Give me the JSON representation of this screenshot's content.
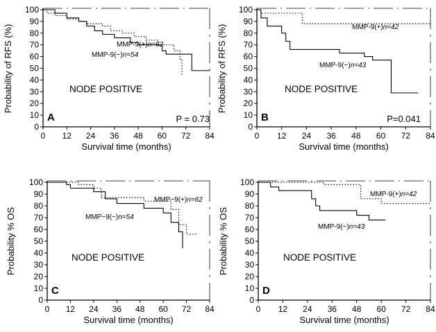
{
  "chart_data": [
    {
      "id": "A",
      "type": "line",
      "panel_label": "A",
      "annotation": "NODE POSITIVE",
      "p_value": "P = 0.73",
      "xlabel": "Survival time (months)",
      "ylabel": "Probability of RFS (%)",
      "xlim": [
        0,
        84
      ],
      "ylim": [
        0,
        100
      ],
      "xticks": [
        0,
        12,
        24,
        36,
        48,
        60,
        72,
        84
      ],
      "yticks": [
        0,
        10,
        20,
        30,
        40,
        50,
        60,
        70,
        80,
        90,
        100
      ],
      "series": [
        {
          "name": "MMP-9(+) n=62",
          "style": "dotted",
          "x": [
            0,
            2,
            6,
            12,
            18,
            22,
            30,
            34,
            40,
            46,
            52,
            58,
            66,
            69,
            70
          ],
          "y": [
            100,
            97,
            95,
            92,
            90,
            88,
            86,
            82,
            80,
            77,
            74,
            70,
            65,
            58,
            44
          ]
        },
        {
          "name": "MMP-9(−) n=54",
          "style": "solid",
          "x": [
            0,
            6,
            12,
            18,
            22,
            26,
            30,
            36,
            44,
            48,
            60,
            62,
            75,
            80,
            84
          ],
          "y": [
            100,
            97,
            93,
            90,
            86,
            82,
            79,
            76,
            72,
            70,
            65,
            62,
            48,
            48,
            48
          ]
        }
      ],
      "labels": [
        {
          "series": 0,
          "text": "MMP-9(+)",
          "n": "n=62"
        },
        {
          "series": 1,
          "text": "MMP-9(−)",
          "n": "n=54"
        }
      ]
    },
    {
      "id": "B",
      "type": "line",
      "panel_label": "B",
      "annotation": "NODE POSITIVE",
      "p_value": "P=0.041",
      "xlabel": "Survival time (months)",
      "ylabel": "Probability of RFS (%)",
      "xlim": [
        0,
        84
      ],
      "ylim": [
        0,
        100
      ],
      "xticks": [
        0,
        12,
        24,
        36,
        48,
        60,
        72,
        84
      ],
      "yticks": [
        0,
        10,
        20,
        30,
        40,
        50,
        60,
        70,
        80,
        90,
        100
      ],
      "series": [
        {
          "name": "MMP-9(+) n=42",
          "style": "dotted",
          "x": [
            0,
            2,
            20,
            22,
            36,
            48,
            84
          ],
          "y": [
            100,
            97,
            97,
            88,
            88,
            88,
            88
          ]
        },
        {
          "name": "MMP-9(−) n=43",
          "style": "solid",
          "x": [
            0,
            2,
            5,
            12,
            14,
            16,
            40,
            52,
            56,
            65,
            66,
            78
          ],
          "y": [
            100,
            93,
            86,
            80,
            73,
            66,
            63,
            60,
            57,
            29,
            29,
            29
          ]
        }
      ],
      "labels": [
        {
          "series": 0,
          "text": "MMP-9(+)",
          "n": "n=42"
        },
        {
          "series": 1,
          "text": "MMP-9(−)",
          "n": "n=43"
        }
      ]
    },
    {
      "id": "C",
      "type": "line",
      "panel_label": "C",
      "annotation": "NODE POSITIVE",
      "p_value": "",
      "xlabel": "Survival time (months)",
      "ylabel": "Probability % OS",
      "xlim": [
        0,
        84
      ],
      "ylim": [
        0,
        100
      ],
      "xticks": [
        0,
        12,
        24,
        36,
        48,
        60,
        72,
        84
      ],
      "yticks": [
        0,
        10,
        20,
        30,
        40,
        50,
        60,
        70,
        80,
        90,
        100
      ],
      "series": [
        {
          "name": "MMP-9(+) n=62",
          "style": "dotted",
          "x": [
            0,
            12,
            16,
            24,
            28,
            48,
            50,
            64,
            68,
            72,
            78
          ],
          "y": [
            100,
            100,
            98,
            95,
            87,
            87,
            84,
            77,
            64,
            56,
            56
          ]
        },
        {
          "name": "MMP-9(−) n=54",
          "style": "solid",
          "x": [
            0,
            10,
            12,
            24,
            30,
            36,
            48,
            50,
            60,
            64,
            68,
            70
          ],
          "y": [
            100,
            98,
            95,
            92,
            86,
            82,
            82,
            78,
            74,
            66,
            58,
            44
          ]
        }
      ],
      "labels": [
        {
          "series": 0,
          "text": "MMP−9(+)",
          "n": "n=62"
        },
        {
          "series": 1,
          "text": "MMP−9(−)",
          "n": "n=54"
        }
      ]
    },
    {
      "id": "D",
      "type": "line",
      "panel_label": "D",
      "annotation": "NODE POSITIVE",
      "p_value": "",
      "xlabel": "Survival time (months)",
      "ylabel": "Probability % OS",
      "xlim": [
        0,
        84
      ],
      "ylim": [
        0,
        100
      ],
      "xticks": [
        0,
        12,
        24,
        36,
        48,
        60,
        72,
        84
      ],
      "yticks": [
        0,
        10,
        20,
        30,
        40,
        50,
        60,
        70,
        80,
        90,
        100
      ],
      "series": [
        {
          "name": "MMP-9(+) n=42",
          "style": "dotted",
          "x": [
            0,
            30,
            32,
            44,
            50,
            56,
            60,
            72,
            84
          ],
          "y": [
            100,
            100,
            98,
            98,
            86,
            86,
            82,
            82,
            82
          ]
        },
        {
          "name": "MMP-9(−) n=43",
          "style": "solid",
          "x": [
            0,
            6,
            10,
            22,
            26,
            28,
            30,
            44,
            48,
            52,
            54,
            62
          ],
          "y": [
            100,
            96,
            93,
            93,
            86,
            80,
            76,
            76,
            72,
            72,
            68,
            68
          ]
        }
      ],
      "labels": [
        {
          "series": 0,
          "text": "MMP-9(+)",
          "n": "n=42"
        },
        {
          "series": 1,
          "text": "MMP-9(−)",
          "n": "n=43"
        }
      ]
    }
  ]
}
